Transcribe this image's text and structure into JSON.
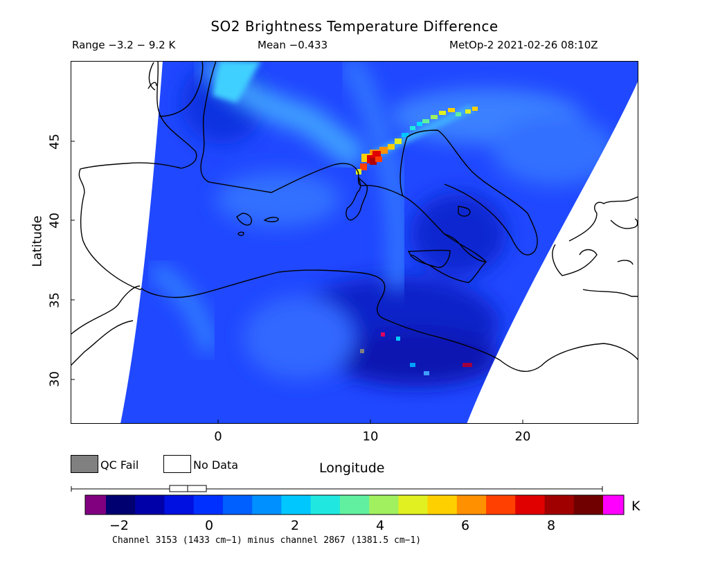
{
  "title": "SO2 Brightness Temperature Difference",
  "range_text": "Range −3.2 − 9.2 K",
  "mean_text": "Mean −0.433",
  "satellite_text": "MetOp-2 2021-02-26 08:10Z",
  "ylabel": "Latitude",
  "xlabel": "Longitude",
  "lat_ticks": [
    "45",
    "40",
    "35",
    "30"
  ],
  "lon_ticks": [
    "0",
    "10",
    "20"
  ],
  "legend": {
    "qc_fail": "QC Fail",
    "no_data": "No Data",
    "qc_color": "#808080",
    "no_data_color": "#ffffff"
  },
  "colorbar": {
    "ticks": [
      "−2",
      "0",
      "2",
      "4",
      "6",
      "8"
    ],
    "tick_values": [
      -2,
      0,
      2,
      4,
      6,
      8
    ],
    "min": -3.2,
    "max": 9.2,
    "unit": "K",
    "under_color": "#800080",
    "over_color": "#ff00ff",
    "colors": [
      "#000070",
      "#0000a8",
      "#0010e0",
      "#0030ff",
      "#0060ff",
      "#0090ff",
      "#00c8ff",
      "#20e8e0",
      "#60f0a0",
      "#a0f060",
      "#e0f020",
      "#ffd000",
      "#ff9000",
      "#ff4000",
      "#e00000",
      "#a00000",
      "#700000"
    ]
  },
  "footnote": "Channel 3153 (1433 cm−1) minus channel 2867 (1381.5 cm−1)",
  "map_data": {
    "lon_range": [
      -9.5,
      27.7
    ],
    "lat_range": [
      27.2,
      50.2
    ],
    "plume_peak_value": 9.2,
    "plume_peak_lonlat": [
      10,
      43.5
    ]
  }
}
